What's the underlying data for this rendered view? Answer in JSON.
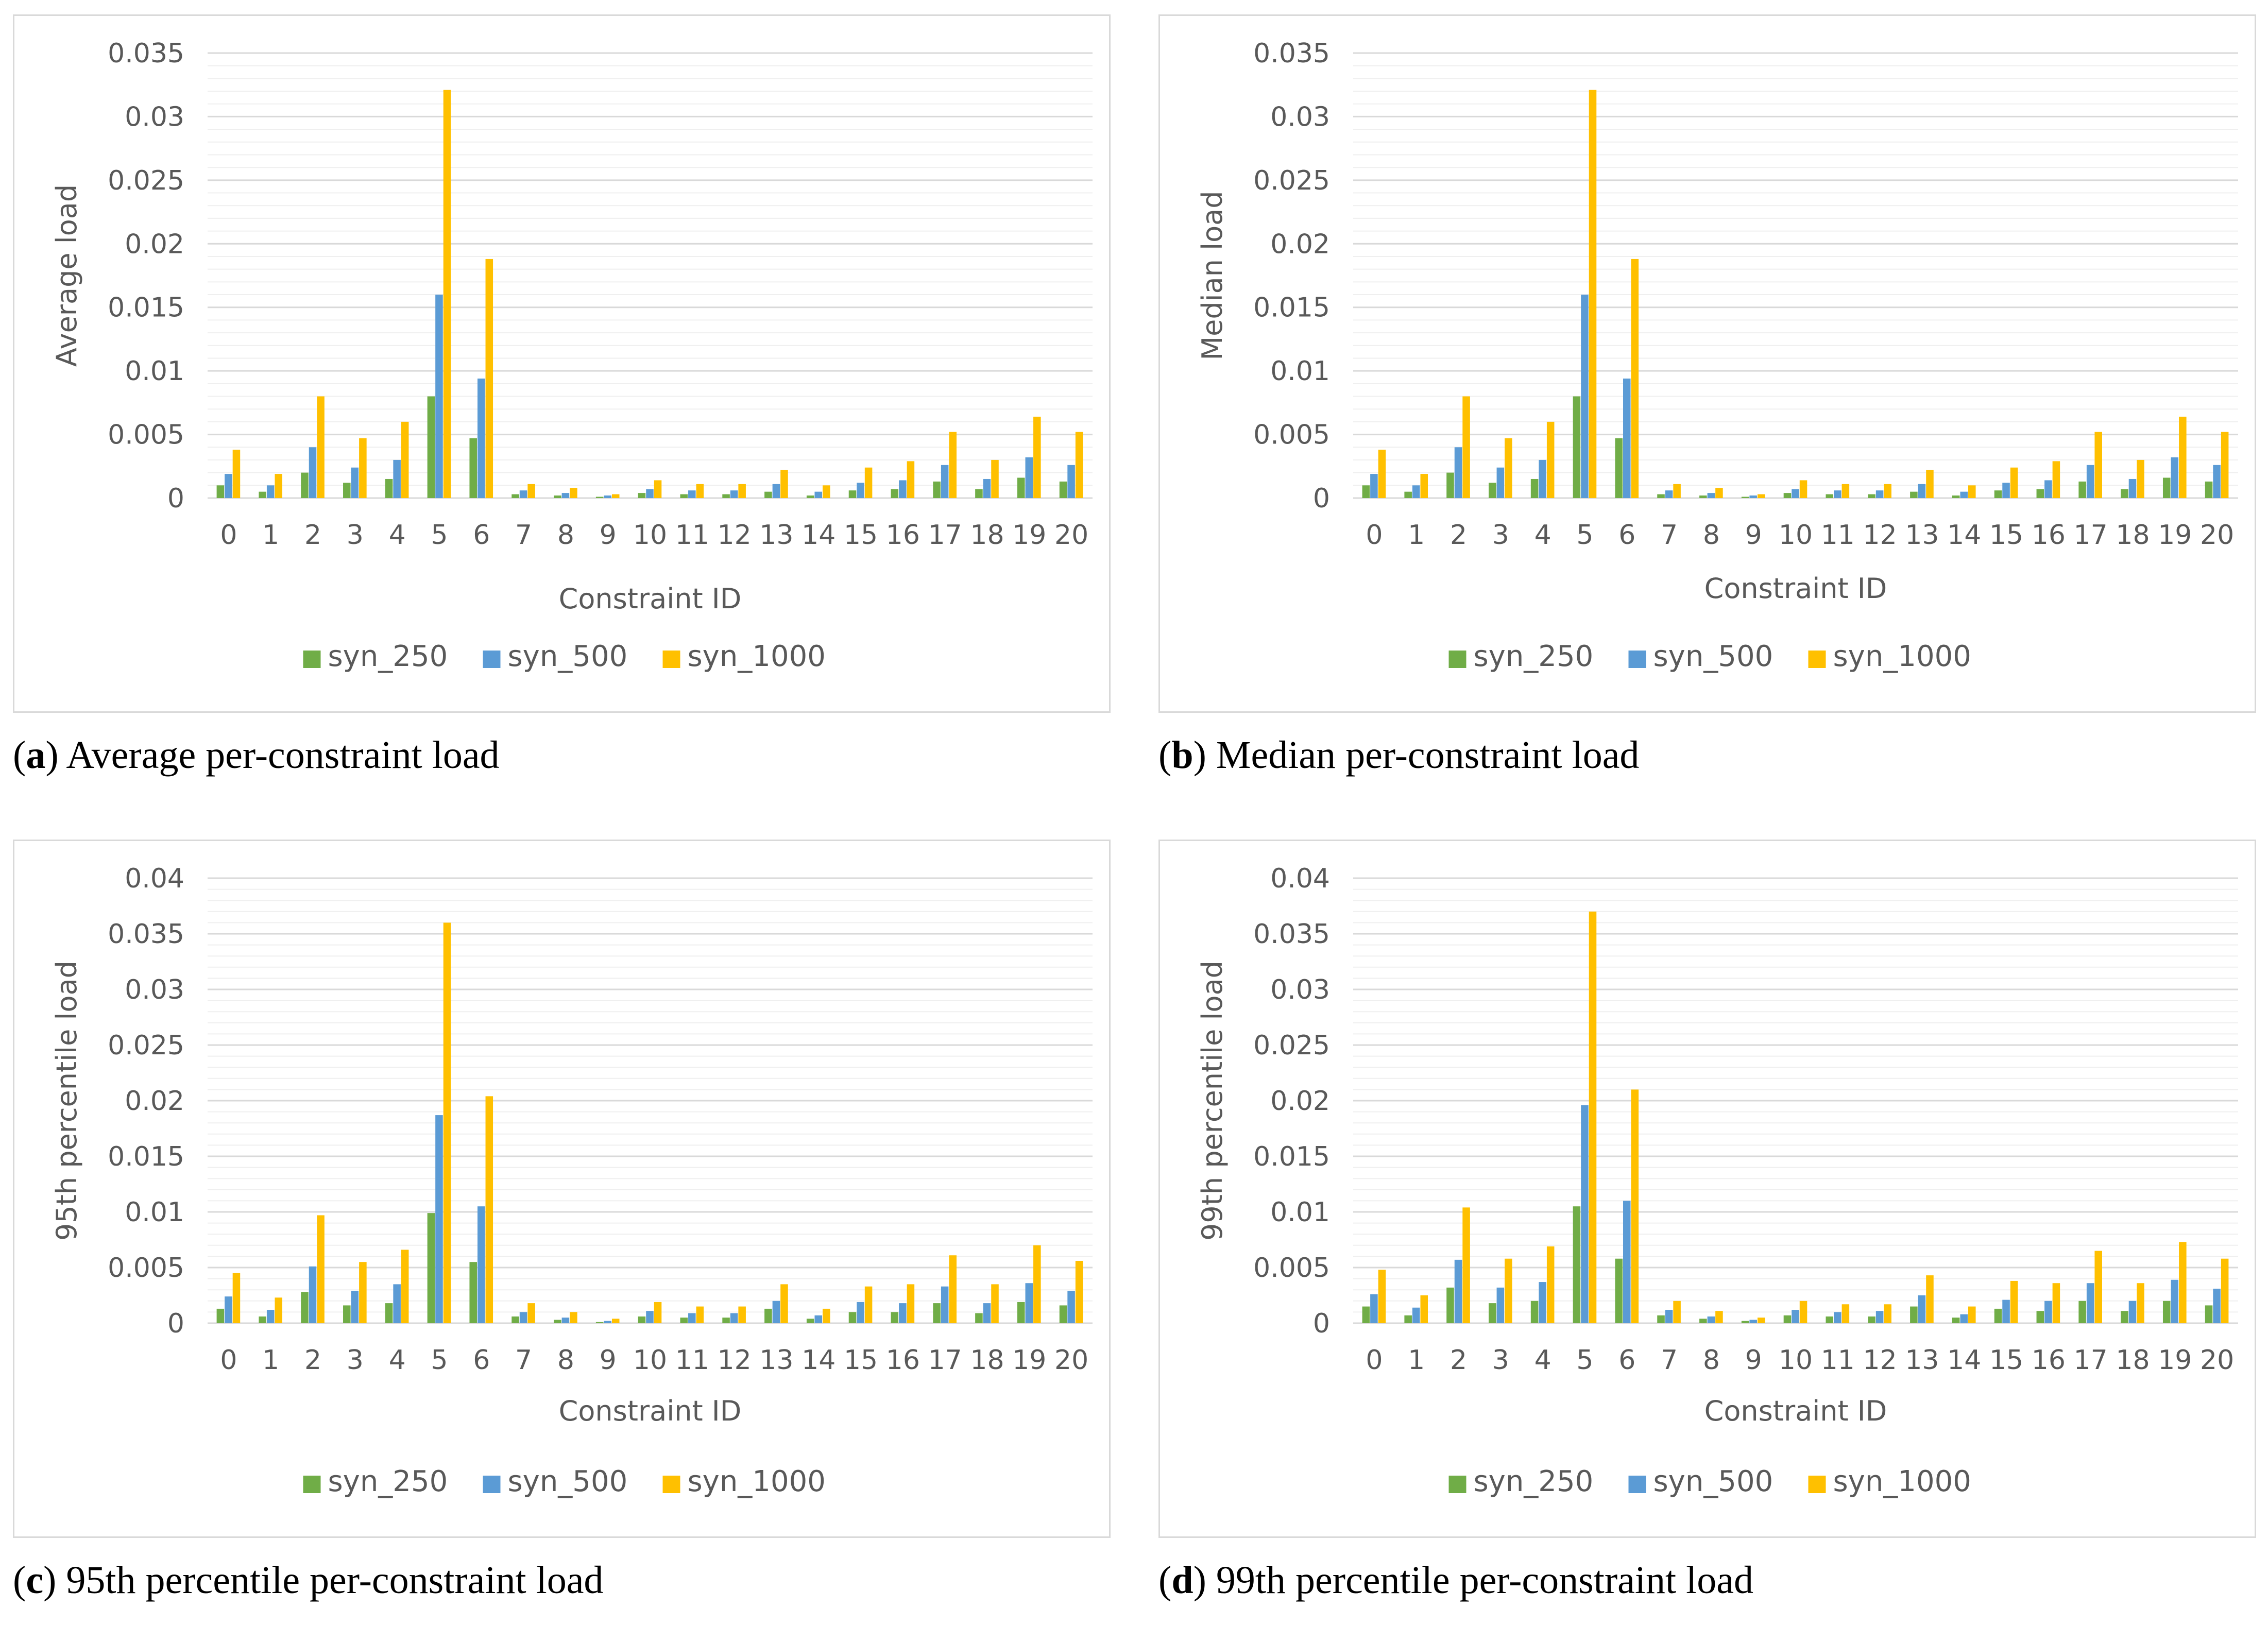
{
  "colors": {
    "syn_250": "#70ad47",
    "syn_500": "#5b9bd5",
    "syn_1000": "#ffc000",
    "grid": "#d9d9d9",
    "minor_grid": "#efefef"
  },
  "chart_data": [
    {
      "type": "bar",
      "caption_letter": "a",
      "caption_text": " Average per-constraint load",
      "xlabel": "Constraint ID",
      "ylabel": "Average load",
      "ylim": [
        0,
        0.035
      ],
      "yticks": [
        "0",
        "0.005",
        "0.01",
        "0.015",
        "0.02",
        "0.025",
        "0.03",
        "0.035"
      ],
      "legend_position": "bottom",
      "categories": [
        "0",
        "1",
        "2",
        "3",
        "4",
        "5",
        "6",
        "7",
        "8",
        "9",
        "10",
        "11",
        "12",
        "13",
        "14",
        "15",
        "16",
        "17",
        "18",
        "19",
        "20"
      ],
      "series": [
        {
          "name": "syn_250",
          "values": [
            0.001,
            0.0005,
            0.002,
            0.0012,
            0.0015,
            0.008,
            0.0047,
            0.0003,
            0.0002,
            0.0001,
            0.0004,
            0.0003,
            0.0003,
            0.0005,
            0.0002,
            0.0006,
            0.0007,
            0.0013,
            0.0007,
            0.0016,
            0.0013
          ]
        },
        {
          "name": "syn_500",
          "values": [
            0.0019,
            0.001,
            0.004,
            0.0024,
            0.003,
            0.016,
            0.0094,
            0.0006,
            0.0004,
            0.0002,
            0.0007,
            0.0006,
            0.0006,
            0.0011,
            0.0005,
            0.0012,
            0.0014,
            0.0026,
            0.0015,
            0.0032,
            0.0026
          ]
        },
        {
          "name": "syn_1000",
          "values": [
            0.0038,
            0.0019,
            0.008,
            0.0047,
            0.006,
            0.0321,
            0.0188,
            0.0011,
            0.0008,
            0.0003,
            0.0014,
            0.0011,
            0.0011,
            0.0022,
            0.001,
            0.0024,
            0.0029,
            0.0052,
            0.003,
            0.0064,
            0.0052
          ]
        }
      ]
    },
    {
      "type": "bar",
      "caption_letter": "b",
      "caption_text": " Median per-constraint load",
      "xlabel": "Constraint ID",
      "ylabel": "Median load",
      "ylim": [
        0,
        0.035
      ],
      "yticks": [
        "0",
        "0.005",
        "0.01",
        "0.015",
        "0.02",
        "0.025",
        "0.03",
        "0.035"
      ],
      "legend_position": "bottom",
      "categories": [
        "0",
        "1",
        "2",
        "3",
        "4",
        "5",
        "6",
        "7",
        "8",
        "9",
        "10",
        "11",
        "12",
        "13",
        "14",
        "15",
        "16",
        "17",
        "18",
        "19",
        "20"
      ],
      "series": [
        {
          "name": "syn_250",
          "values": [
            0.001,
            0.0005,
            0.002,
            0.0012,
            0.0015,
            0.008,
            0.0047,
            0.0003,
            0.0002,
            0.0001,
            0.0004,
            0.0003,
            0.0003,
            0.0005,
            0.0002,
            0.0006,
            0.0007,
            0.0013,
            0.0007,
            0.0016,
            0.0013
          ]
        },
        {
          "name": "syn_500",
          "values": [
            0.0019,
            0.001,
            0.004,
            0.0024,
            0.003,
            0.016,
            0.0094,
            0.0006,
            0.0004,
            0.0002,
            0.0007,
            0.0006,
            0.0006,
            0.0011,
            0.0005,
            0.0012,
            0.0014,
            0.0026,
            0.0015,
            0.0032,
            0.0026
          ]
        },
        {
          "name": "syn_1000",
          "values": [
            0.0038,
            0.0019,
            0.008,
            0.0047,
            0.006,
            0.0321,
            0.0188,
            0.0011,
            0.0008,
            0.0003,
            0.0014,
            0.0011,
            0.0011,
            0.0022,
            0.001,
            0.0024,
            0.0029,
            0.0052,
            0.003,
            0.0064,
            0.0052
          ]
        }
      ]
    },
    {
      "type": "bar",
      "caption_letter": "c",
      "caption_text": " 95th percentile per-constraint load",
      "xlabel": "Constraint ID",
      "ylabel": "95th percentile load",
      "ylim": [
        0,
        0.04
      ],
      "yticks": [
        "0",
        "0.005",
        "0.01",
        "0.015",
        "0.02",
        "0.025",
        "0.03",
        "0.035",
        "0.04"
      ],
      "legend_position": "bottom",
      "categories": [
        "0",
        "1",
        "2",
        "3",
        "4",
        "5",
        "6",
        "7",
        "8",
        "9",
        "10",
        "11",
        "12",
        "13",
        "14",
        "15",
        "16",
        "17",
        "18",
        "19",
        "20"
      ],
      "series": [
        {
          "name": "syn_250",
          "values": [
            0.0013,
            0.0006,
            0.0028,
            0.0016,
            0.0018,
            0.0099,
            0.0055,
            0.0006,
            0.0003,
            0.0001,
            0.0006,
            0.0005,
            0.0005,
            0.0013,
            0.0004,
            0.001,
            0.001,
            0.0018,
            0.0009,
            0.0019,
            0.0016
          ]
        },
        {
          "name": "syn_500",
          "values": [
            0.0024,
            0.0012,
            0.0051,
            0.0029,
            0.0035,
            0.0187,
            0.0105,
            0.001,
            0.0005,
            0.0002,
            0.0011,
            0.0009,
            0.0009,
            0.002,
            0.0007,
            0.0019,
            0.0018,
            0.0033,
            0.0018,
            0.0036,
            0.0029
          ]
        },
        {
          "name": "syn_1000",
          "values": [
            0.0045,
            0.0023,
            0.0097,
            0.0055,
            0.0066,
            0.036,
            0.0204,
            0.0018,
            0.001,
            0.0004,
            0.0019,
            0.0015,
            0.0015,
            0.0035,
            0.0013,
            0.0033,
            0.0035,
            0.0061,
            0.0035,
            0.007,
            0.0056
          ]
        }
      ]
    },
    {
      "type": "bar",
      "caption_letter": "d",
      "caption_text": " 99th percentile per-constraint load",
      "xlabel": "Constraint ID",
      "ylabel": "99th percentile load",
      "ylim": [
        0,
        0.04
      ],
      "yticks": [
        "0",
        "0.005",
        "0.01",
        "0.015",
        "0.02",
        "0.025",
        "0.03",
        "0.035",
        "0.04"
      ],
      "legend_position": "bottom",
      "categories": [
        "0",
        "1",
        "2",
        "3",
        "4",
        "5",
        "6",
        "7",
        "8",
        "9",
        "10",
        "11",
        "12",
        "13",
        "14",
        "15",
        "16",
        "17",
        "18",
        "19",
        "20"
      ],
      "series": [
        {
          "name": "syn_250",
          "values": [
            0.0015,
            0.0007,
            0.0032,
            0.0018,
            0.002,
            0.0105,
            0.0058,
            0.0007,
            0.0004,
            0.0002,
            0.0007,
            0.0006,
            0.0006,
            0.0015,
            0.0005,
            0.0013,
            0.0011,
            0.002,
            0.0011,
            0.002,
            0.0016
          ]
        },
        {
          "name": "syn_500",
          "values": [
            0.0026,
            0.0014,
            0.0057,
            0.0032,
            0.0037,
            0.0196,
            0.011,
            0.0012,
            0.0006,
            0.0003,
            0.0012,
            0.001,
            0.0011,
            0.0025,
            0.0008,
            0.0021,
            0.002,
            0.0036,
            0.002,
            0.0039,
            0.0031
          ]
        },
        {
          "name": "syn_1000",
          "values": [
            0.0048,
            0.0025,
            0.0104,
            0.0058,
            0.0069,
            0.037,
            0.021,
            0.002,
            0.0011,
            0.0005,
            0.002,
            0.0017,
            0.0017,
            0.0043,
            0.0015,
            0.0038,
            0.0036,
            0.0065,
            0.0036,
            0.0073,
            0.0058
          ]
        }
      ]
    }
  ]
}
